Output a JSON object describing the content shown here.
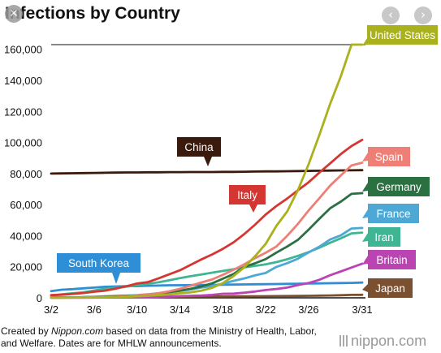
{
  "colors": {
    "United States": "#a9b11d",
    "China": "#3a1a0c",
    "Italy": "#d43732",
    "Spain": "#ee7f77",
    "Germany": "#2b7041",
    "France": "#4ea8d6",
    "Iran": "#3fb594",
    "Britain": "#bb44b3",
    "South Korea": "#2e8fd6",
    "Japan": "#7a5030"
  },
  "icons": {
    "close": "close-icon",
    "prev": "chevron-left-icon",
    "next": "chevron-right-icon"
  },
  "nav": {
    "close_glyph": "✕",
    "prev_glyph": "‹",
    "next_glyph": "›"
  },
  "caption": {
    "prefix": "Created by ",
    "source": "Nippon.com",
    "rest": " based on data from the Ministry of Health, Labor, and Welfare. Dates are for MHLW announcements."
  },
  "brand": "nippon.com",
  "chart_data": {
    "type": "line",
    "title": "Infections by Country",
    "xlabel": "",
    "ylabel": "",
    "x": [
      "3/2",
      "3/3",
      "3/4",
      "3/5",
      "3/6",
      "3/7",
      "3/8",
      "3/9",
      "3/10",
      "3/11",
      "3/12",
      "3/13",
      "3/14",
      "3/15",
      "3/16",
      "3/17",
      "3/18",
      "3/19",
      "3/20",
      "3/21",
      "3/22",
      "3/23",
      "3/24",
      "3/25",
      "3/26",
      "3/27",
      "3/28",
      "3/29",
      "3/30",
      "3/31"
    ],
    "xticks": [
      "3/2",
      "3/6",
      "3/10",
      "3/14",
      "3/18",
      "3/22",
      "3/26",
      "3/31"
    ],
    "yticks": [
      0,
      20000,
      40000,
      60000,
      80000,
      100000,
      120000,
      140000,
      160000
    ],
    "ytick_labels": [
      "0",
      "20,000",
      "40,000",
      "60,000",
      "80,000",
      "100,000",
      "120,000",
      "140,000",
      "160,000"
    ],
    "ylim": [
      0,
      163000
    ],
    "grid": false,
    "legend": "direct labels at line ends",
    "series": [
      {
        "name": "United States",
        "values": [
          100,
          120,
          160,
          220,
          320,
          440,
          550,
          700,
          1000,
          1300,
          1700,
          2200,
          2900,
          3500,
          4600,
          6400,
          9400,
          14000,
          19600,
          26700,
          34700,
          46300,
          55600,
          69300,
          86000,
          104800,
          124700,
          142500,
          163000,
          163000
        ]
      },
      {
        "name": "China",
        "values": [
          80000,
          80100,
          80200,
          80300,
          80400,
          80500,
          80600,
          80700,
          80700,
          80800,
          80800,
          80900,
          80900,
          81000,
          81000,
          81000,
          81100,
          81100,
          81200,
          81300,
          81400,
          81400,
          81500,
          81600,
          81700,
          81800,
          81900,
          82000,
          82100,
          82200
        ]
      },
      {
        "name": "Italy",
        "values": [
          1700,
          2000,
          2500,
          3100,
          3900,
          4600,
          5900,
          7400,
          9200,
          10100,
          12500,
          15100,
          17700,
          21200,
          24700,
          27900,
          31500,
          35700,
          41000,
          47000,
          53600,
          59100,
          63900,
          69200,
          74400,
          80600,
          86500,
          92500,
          97700,
          101700
        ]
      },
      {
        "name": "Spain",
        "values": [
          120,
          160,
          220,
          280,
          400,
          500,
          670,
          1000,
          1600,
          2100,
          3000,
          4200,
          5800,
          7800,
          9900,
          11800,
          14800,
          18000,
          21600,
          25500,
          29000,
          33000,
          39900,
          47600,
          56200,
          64100,
          72200,
          78800,
          85200,
          87000
        ]
      },
      {
        "name": "Germany",
        "values": [
          150,
          180,
          240,
          400,
          570,
          800,
          1000,
          1200,
          1500,
          1900,
          2700,
          3600,
          4600,
          5800,
          7300,
          9300,
          12300,
          15300,
          19800,
          22200,
          24900,
          29100,
          33000,
          37300,
          43900,
          50900,
          57600,
          61900,
          66900,
          67400
        ]
      },
      {
        "name": "France",
        "values": [
          190,
          210,
          280,
          380,
          650,
          950,
          1200,
          1400,
          1800,
          2300,
          2900,
          3700,
          4500,
          5400,
          6600,
          7700,
          9100,
          10900,
          12500,
          14400,
          16000,
          19900,
          22300,
          25200,
          29200,
          32900,
          37500,
          40200,
          44600,
          45000
        ]
      },
      {
        "name": "Iran",
        "values": [
          1500,
          2300,
          2900,
          3500,
          4700,
          5800,
          6500,
          7200,
          8000,
          9000,
          10000,
          11300,
          12700,
          13900,
          15000,
          16200,
          17300,
          18400,
          19600,
          20600,
          21600,
          23000,
          24800,
          27000,
          29400,
          32300,
          35400,
          38300,
          41500,
          42000
        ]
      },
      {
        "name": "Britain",
        "values": [
          40,
          50,
          90,
          110,
          160,
          210,
          270,
          320,
          380,
          460,
          590,
          800,
          1100,
          1300,
          1500,
          1900,
          2600,
          2700,
          3300,
          4000,
          5000,
          5700,
          6600,
          8200,
          9500,
          11600,
          14500,
          17000,
          19500,
          22000
        ]
      },
      {
        "name": "South Korea",
        "values": [
          4300,
          5200,
          5600,
          6100,
          6600,
          7100,
          7300,
          7500,
          7500,
          7800,
          7900,
          8100,
          8100,
          8200,
          8300,
          8300,
          8400,
          8500,
          8600,
          8700,
          8800,
          8900,
          9000,
          9100,
          9200,
          9300,
          9400,
          9500,
          9600,
          9800
        ]
      },
      {
        "name": "Japan",
        "values": [
          254,
          268,
          284,
          317,
          349,
          420,
          455,
          488,
          514,
          568,
          620,
          675,
          716,
          780,
          814,
          829,
          873,
          924,
          950,
          1007,
          1046,
          1089,
          1128,
          1193,
          1291,
          1387,
          1499,
          1693,
          1866,
          1953
        ]
      }
    ]
  }
}
